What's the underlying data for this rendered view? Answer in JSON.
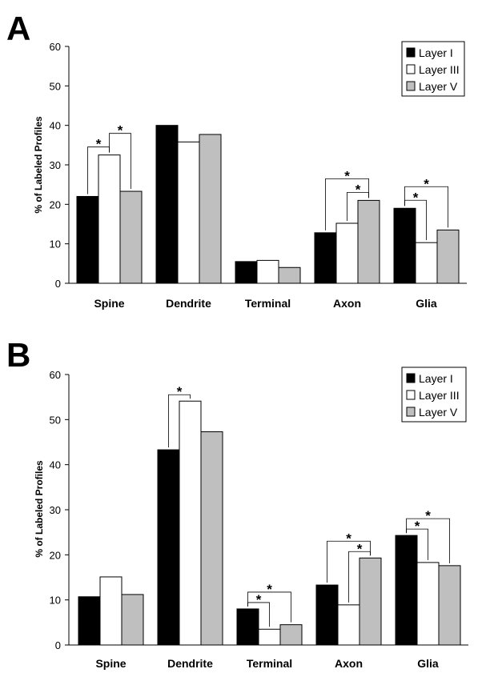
{
  "colors": {
    "Layer I": "#000000",
    "Layer III": "#ffffff",
    "Layer V": "#bfbfbf"
  },
  "chart_data": [
    {
      "panel": "A",
      "type": "bar",
      "ylabel": "% of Labeled Profiles",
      "ylim": [
        0,
        60
      ],
      "yticks": [
        0,
        10,
        20,
        30,
        40,
        50,
        60
      ],
      "categories": [
        "Spine",
        "Dendrite",
        "Terminal",
        "Axon",
        "Glia"
      ],
      "series": [
        {
          "name": "Layer I",
          "values": [
            22,
            40,
            5.5,
            12.8,
            19
          ]
        },
        {
          "name": "Layer III",
          "values": [
            32.5,
            35.8,
            5.8,
            15.2,
            10.3
          ]
        },
        {
          "name": "Layer V",
          "values": [
            23.3,
            37.7,
            4,
            21,
            13.5
          ]
        }
      ],
      "legend": {
        "position": "top-right",
        "entries": [
          "Layer I",
          "Layer III",
          "Layer V"
        ]
      },
      "significance": [
        {
          "category": 0,
          "from": 0,
          "to": 1,
          "label": "*"
        },
        {
          "category": 0,
          "from": 1,
          "to": 2,
          "label": "*"
        },
        {
          "category": 3,
          "from": 1,
          "to": 2,
          "label": "*"
        },
        {
          "category": 3,
          "from": 0,
          "to": 2,
          "label": "*"
        },
        {
          "category": 4,
          "from": 0,
          "to": 1,
          "label": "*"
        },
        {
          "category": 4,
          "from": 0,
          "to": 2,
          "label": "*"
        }
      ]
    },
    {
      "panel": "B",
      "type": "bar",
      "ylabel": "% of Labeled Profiles",
      "ylim": [
        0,
        60
      ],
      "yticks": [
        0,
        10,
        20,
        30,
        40,
        50,
        60
      ],
      "categories": [
        "Spine",
        "Dendrite",
        "Terminal",
        "Axon",
        "Glia"
      ],
      "series": [
        {
          "name": "Layer I",
          "values": [
            10.7,
            43.3,
            8,
            13.3,
            24.3
          ]
        },
        {
          "name": "Layer III",
          "values": [
            15.1,
            54.1,
            3.5,
            8.9,
            18.3
          ]
        },
        {
          "name": "Layer V",
          "values": [
            11.2,
            47.3,
            4.5,
            19.3,
            17.6
          ]
        }
      ],
      "legend": {
        "position": "top-right",
        "entries": [
          "Layer I",
          "Layer III",
          "Layer V"
        ]
      },
      "significance": [
        {
          "category": 1,
          "from": 0,
          "to": 1,
          "label": "*"
        },
        {
          "category": 2,
          "from": 0,
          "to": 1,
          "label": "*"
        },
        {
          "category": 2,
          "from": 0,
          "to": 2,
          "label": "*"
        },
        {
          "category": 3,
          "from": 1,
          "to": 2,
          "label": "*"
        },
        {
          "category": 3,
          "from": 0,
          "to": 2,
          "label": "*"
        },
        {
          "category": 4,
          "from": 0,
          "to": 1,
          "label": "*"
        },
        {
          "category": 4,
          "from": 0,
          "to": 2,
          "label": "*"
        }
      ]
    }
  ]
}
